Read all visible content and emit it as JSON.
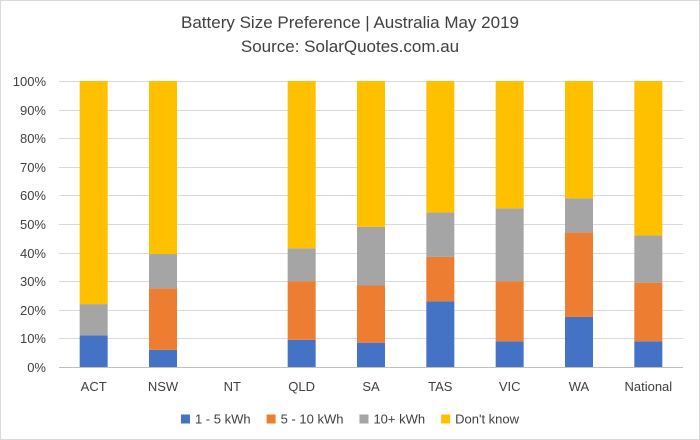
{
  "chart_data": {
    "type": "bar",
    "stacked": true,
    "title": "Battery Size Preference  | Australia May 2019",
    "subtitle": "Source: SolarQuotes.com.au",
    "categories": [
      "ACT",
      "NSW",
      "NT",
      "QLD",
      "SA",
      "TAS",
      "VIC",
      "WA",
      "National"
    ],
    "ylim": [
      0,
      100
    ],
    "yticks": [
      0,
      10,
      20,
      30,
      40,
      50,
      60,
      70,
      80,
      90,
      100
    ],
    "ytick_labels": [
      "0%",
      "10%",
      "20%",
      "30%",
      "40%",
      "50%",
      "60%",
      "70%",
      "80%",
      "90%",
      "100%"
    ],
    "grid": "horizontal",
    "legend_position": "bottom",
    "series": [
      {
        "name": "1 - 5 kWh",
        "color": "#4472c4",
        "values": [
          11,
          6,
          0,
          9.5,
          8.5,
          23,
          9,
          17.5,
          9
        ]
      },
      {
        "name": "5 - 10 kWh",
        "color": "#ed7d31",
        "values": [
          0,
          21.5,
          0,
          20.5,
          20,
          15.5,
          21,
          29.5,
          20.5
        ]
      },
      {
        "name": "10+ kWh",
        "color": "#a5a5a5",
        "values": [
          11,
          12,
          0,
          11.5,
          20.5,
          15.5,
          25.5,
          12,
          16.5
        ]
      },
      {
        "name": "Don't know",
        "color": "#ffc000",
        "values": [
          78,
          60.5,
          0,
          58.5,
          51,
          46,
          44.5,
          41,
          54
        ]
      }
    ]
  }
}
